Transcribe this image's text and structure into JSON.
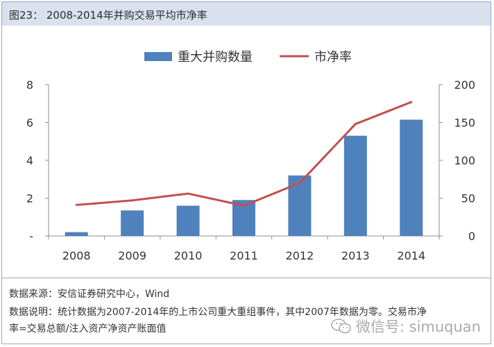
{
  "header": {
    "title": "图23： 2008-2014年并购交易平均市净率"
  },
  "chart_data": {
    "type": "bar",
    "categories": [
      "2008",
      "2009",
      "2010",
      "2011",
      "2012",
      "2013",
      "2014"
    ],
    "series": [
      {
        "name": "重大并购数量",
        "type": "bar",
        "axis": "left",
        "color": "#4f81bd",
        "values": [
          0.2,
          1.35,
          1.6,
          1.9,
          3.2,
          5.3,
          6.15
        ]
      },
      {
        "name": "市净率",
        "type": "line",
        "axis": "right",
        "color": "#c0504d",
        "values": [
          41,
          47,
          56,
          40,
          70,
          148,
          177
        ]
      }
    ],
    "y_left": {
      "min": 0,
      "max": 8,
      "ticks": [
        "-",
        "2",
        "4",
        "6",
        "8"
      ]
    },
    "y_right": {
      "min": 0,
      "max": 200,
      "ticks": [
        "0",
        "50",
        "100",
        "150",
        "200"
      ]
    },
    "legend": "top-center",
    "grid": false
  },
  "footer": {
    "source": "数据来源：安信证券研究中心，Wind",
    "note_line1": "数据说明：统计数据为2007-2014年的上市公司重大重组事件，其中2007年数据为零。交易市净",
    "note_line2": "率=交易总额/注入资产净资产账面值",
    "watermark": "微信号: simuquan",
    "watermark_icon": "wechat-icon"
  }
}
